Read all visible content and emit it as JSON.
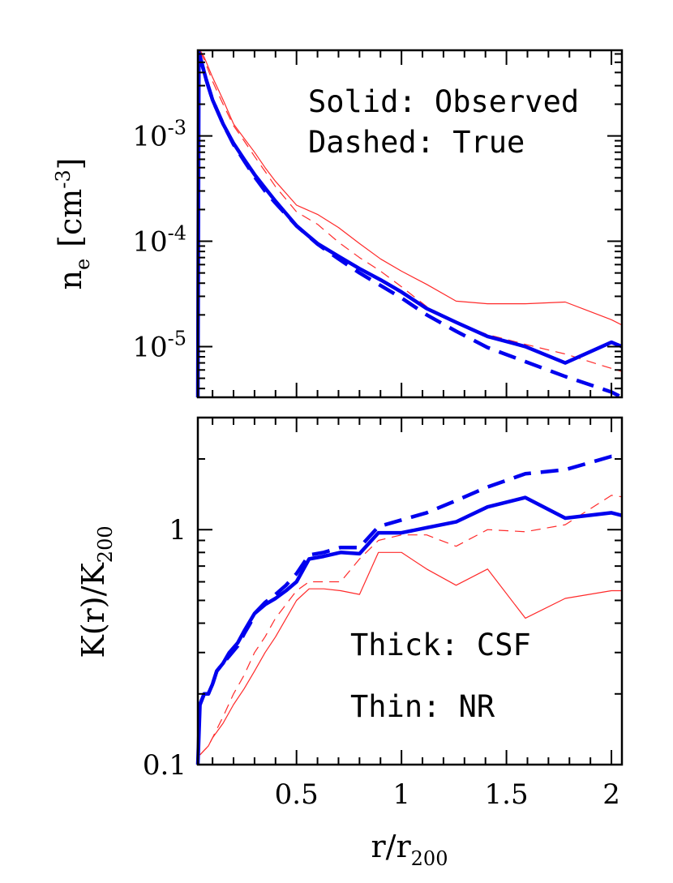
{
  "chart_data": [
    {
      "type": "line",
      "panel": "top",
      "ylabel_main": "n",
      "ylabel_sub": "e",
      "ylabel_unit_open": "[cm",
      "ylabel_unit_exp": "-3",
      "ylabel_unit_close": "]",
      "yscale": "log",
      "ylim": [
        3.3e-06,
        0.0065
      ],
      "xlim": [
        0.03,
        2.05
      ],
      "yticks": [
        {
          "value": 0.001,
          "base": "10",
          "exp": "-3"
        },
        {
          "value": 0.0001,
          "base": "10",
          "exp": "-4"
        },
        {
          "value": 1e-05,
          "base": "10",
          "exp": "-5"
        }
      ],
      "annotations": [
        "Solid: Observed",
        "Dashed: True"
      ],
      "series": [
        {
          "style": "thick-solid",
          "color": "#0000ee",
          "x": [
            0.03,
            0.035,
            0.05,
            0.07,
            0.1,
            0.15,
            0.2,
            0.25,
            0.3,
            0.35,
            0.4,
            0.5,
            0.6,
            0.7,
            0.8,
            0.9,
            1.0,
            1.12,
            1.26,
            1.41,
            1.59,
            1.78,
            2.0,
            2.05
          ],
          "y": [
            3.3e-06,
            0.0062,
            0.0048,
            0.0034,
            0.0022,
            0.0013,
            0.00085,
            0.0006,
            0.00043,
            0.00032,
            0.00024,
            0.00014,
            9.5e-05,
            7.2e-05,
            5.5e-05,
            4.3e-05,
            3.3e-05,
            2.3e-05,
            1.7e-05,
            1.25e-05,
            1e-05,
            7e-06,
            1.1e-05,
            1e-05
          ]
        },
        {
          "style": "thick-dashed",
          "color": "#0000ee",
          "x": [
            0.035,
            0.05,
            0.07,
            0.1,
            0.15,
            0.2,
            0.25,
            0.3,
            0.35,
            0.4,
            0.5,
            0.6,
            0.7,
            0.8,
            0.9,
            1.0,
            1.12,
            1.26,
            1.41,
            1.59,
            1.78,
            2.0,
            2.05
          ],
          "y": [
            0.0062,
            0.0048,
            0.0034,
            0.0022,
            0.0013,
            0.00083,
            0.00058,
            0.00041,
            0.0003,
            0.00023,
            0.00014,
            9.4e-05,
            6.8e-05,
            5e-05,
            3.8e-05,
            2.9e-05,
            2e-05,
            1.4e-05,
            9.8e-06,
            7.2e-06,
            5.2e-06,
            3.7e-06,
            3.3e-06
          ]
        },
        {
          "style": "thin-solid",
          "color": "#ff2a2a",
          "x": [
            0.04,
            0.06,
            0.08,
            0.1,
            0.15,
            0.2,
            0.25,
            0.3,
            0.35,
            0.4,
            0.5,
            0.6,
            0.7,
            0.8,
            0.9,
            1.0,
            1.12,
            1.26,
            1.41,
            1.59,
            1.78,
            2.0,
            2.05
          ],
          "y": [
            0.0065,
            0.0056,
            0.0045,
            0.0036,
            0.0022,
            0.0013,
            0.00095,
            0.0007,
            0.0005,
            0.00037,
            0.00022,
            0.00018,
            0.000135,
            9.5e-05,
            6.8e-05,
            5.2e-05,
            3.9e-05,
            2.7e-05,
            2.55e-05,
            2.55e-05,
            2.65e-05,
            1.8e-05,
            1.6e-05
          ]
        },
        {
          "style": "thin-dashed",
          "color": "#ff2a2a",
          "x": [
            0.04,
            0.06,
            0.08,
            0.1,
            0.15,
            0.2,
            0.25,
            0.3,
            0.35,
            0.4,
            0.5,
            0.6,
            0.7,
            0.8,
            0.9,
            1.0,
            1.12,
            1.26,
            1.41,
            1.59,
            1.78,
            2.0,
            2.05
          ],
          "y": [
            0.0063,
            0.0053,
            0.0042,
            0.0033,
            0.002,
            0.00125,
            0.0009,
            0.00064,
            0.00046,
            0.00033,
            0.00019,
            0.000145,
            9.8e-05,
            7e-05,
            5.2e-05,
            3.7e-05,
            2.4e-05,
            1.7e-05,
            1.3e-05,
            1.05e-05,
            8.5e-06,
            6.2e-06,
            5.8e-06
          ]
        }
      ]
    },
    {
      "type": "line",
      "panel": "bottom",
      "ylabel_main": "K(r)/K",
      "ylabel_sub": "200",
      "xlabel_main": "r/r",
      "xlabel_sub": "200",
      "yscale": "log",
      "ylim": [
        0.1,
        3.0
      ],
      "xlim": [
        0.03,
        2.05
      ],
      "xticks": [
        {
          "value": 0.5,
          "label": "0.5"
        },
        {
          "value": 1,
          "label": "1"
        },
        {
          "value": 1.5,
          "label": "1.5"
        },
        {
          "value": 2,
          "label": "2"
        }
      ],
      "yticks": [
        {
          "value": 0.1,
          "label": "0.1"
        },
        {
          "value": 1,
          "label": "1"
        }
      ],
      "annotations": [
        "Thick: CSF",
        "Thin: NR"
      ],
      "series": [
        {
          "style": "thick-solid",
          "color": "#0000ee",
          "x": [
            0.03,
            0.04,
            0.06,
            0.08,
            0.1,
            0.12,
            0.15,
            0.18,
            0.22,
            0.25,
            0.28,
            0.3,
            0.35,
            0.4,
            0.45,
            0.5,
            0.56,
            0.63,
            0.71,
            0.8,
            0.89,
            1.0,
            1.12,
            1.26,
            1.41,
            1.59,
            1.78,
            2.0,
            2.05
          ],
          "y": [
            0.1,
            0.18,
            0.2,
            0.2,
            0.22,
            0.25,
            0.27,
            0.3,
            0.33,
            0.37,
            0.41,
            0.44,
            0.48,
            0.51,
            0.55,
            0.6,
            0.75,
            0.77,
            0.8,
            0.79,
            0.97,
            0.97,
            1.02,
            1.08,
            1.25,
            1.37,
            1.12,
            1.18,
            1.15
          ]
        },
        {
          "style": "thick-dashed",
          "color": "#0000ee",
          "x": [
            0.04,
            0.06,
            0.08,
            0.1,
            0.12,
            0.15,
            0.18,
            0.22,
            0.25,
            0.28,
            0.3,
            0.35,
            0.4,
            0.45,
            0.5,
            0.56,
            0.63,
            0.71,
            0.8,
            0.89,
            1.0,
            1.12,
            1.26,
            1.41,
            1.59,
            1.78,
            2.0,
            2.05
          ],
          "y": [
            0.18,
            0.2,
            0.2,
            0.22,
            0.25,
            0.27,
            0.29,
            0.32,
            0.36,
            0.4,
            0.44,
            0.49,
            0.53,
            0.58,
            0.65,
            0.78,
            0.8,
            0.84,
            0.84,
            1.03,
            1.1,
            1.18,
            1.33,
            1.52,
            1.73,
            1.8,
            2.05,
            2.05
          ]
        },
        {
          "style": "thin-solid",
          "color": "#ff2a2a",
          "x": [
            0.04,
            0.06,
            0.08,
            0.1,
            0.15,
            0.2,
            0.25,
            0.3,
            0.35,
            0.4,
            0.5,
            0.56,
            0.63,
            0.71,
            0.8,
            0.89,
            1.0,
            1.12,
            1.26,
            1.41,
            1.59,
            1.78,
            2.0,
            2.05
          ],
          "y": [
            0.11,
            0.115,
            0.12,
            0.13,
            0.15,
            0.18,
            0.21,
            0.25,
            0.3,
            0.35,
            0.5,
            0.56,
            0.56,
            0.55,
            0.53,
            0.8,
            0.8,
            0.68,
            0.58,
            0.68,
            0.42,
            0.51,
            0.55,
            0.55
          ]
        },
        {
          "style": "thin-dashed",
          "color": "#ff2a2a",
          "x": [
            0.04,
            0.06,
            0.08,
            0.1,
            0.15,
            0.2,
            0.25,
            0.3,
            0.35,
            0.4,
            0.5,
            0.56,
            0.63,
            0.71,
            0.8,
            0.89,
            1.0,
            1.12,
            1.26,
            1.41,
            1.59,
            1.78,
            2.0,
            2.05
          ],
          "y": [
            0.11,
            0.115,
            0.12,
            0.13,
            0.16,
            0.2,
            0.24,
            0.3,
            0.35,
            0.42,
            0.55,
            0.6,
            0.6,
            0.6,
            0.75,
            0.9,
            0.95,
            0.95,
            0.85,
            1.0,
            0.98,
            1.05,
            1.4,
            1.38
          ]
        }
      ]
    }
  ]
}
